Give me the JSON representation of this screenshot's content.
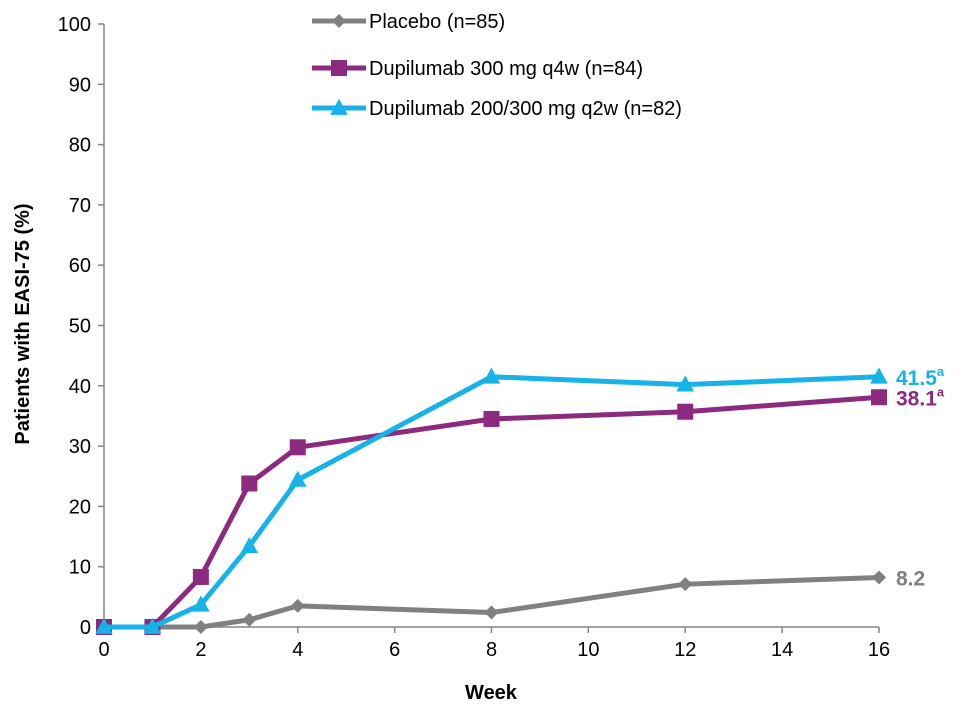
{
  "chart_data": {
    "type": "line",
    "title": "",
    "xlabel": "Week",
    "ylabel": "Patients with EASI-75 (%)",
    "xlim": [
      0,
      16
    ],
    "ylim": [
      0,
      100
    ],
    "xticks": [
      0,
      2,
      4,
      6,
      8,
      10,
      12,
      14,
      16
    ],
    "yticks": [
      0,
      10,
      20,
      30,
      40,
      50,
      60,
      70,
      80,
      90,
      100
    ],
    "grid": false,
    "legend_position": "top-center",
    "series": [
      {
        "name": "Placebo (n=85)",
        "color": "#808080",
        "marker": "diamond",
        "x": [
          0,
          1,
          2,
          3,
          4,
          8,
          12,
          16
        ],
        "y": [
          0,
          0,
          0,
          1.2,
          3.5,
          2.4,
          7.1,
          8.2
        ],
        "end_label": "8.2",
        "end_label_superscript": ""
      },
      {
        "name": "Dupilumab 300 mg q4w (n=84)",
        "color": "#8B2A7E",
        "marker": "square",
        "x": [
          0,
          1,
          2,
          3,
          4,
          8,
          12,
          16
        ],
        "y": [
          0,
          0,
          8.3,
          23.8,
          29.8,
          34.5,
          35.7,
          38.1
        ],
        "end_label": "38.1",
        "end_label_superscript": "a"
      },
      {
        "name": "Dupilumab 200/300 mg q2w (n=82)",
        "color": "#16B2E8",
        "marker": "triangle",
        "x": [
          0,
          1,
          2,
          3,
          4,
          8,
          12,
          16
        ],
        "y": [
          0,
          0,
          3.7,
          13.4,
          24.4,
          41.5,
          40.2,
          41.5
        ],
        "end_label": "41.5",
        "end_label_superscript": "a"
      }
    ]
  }
}
